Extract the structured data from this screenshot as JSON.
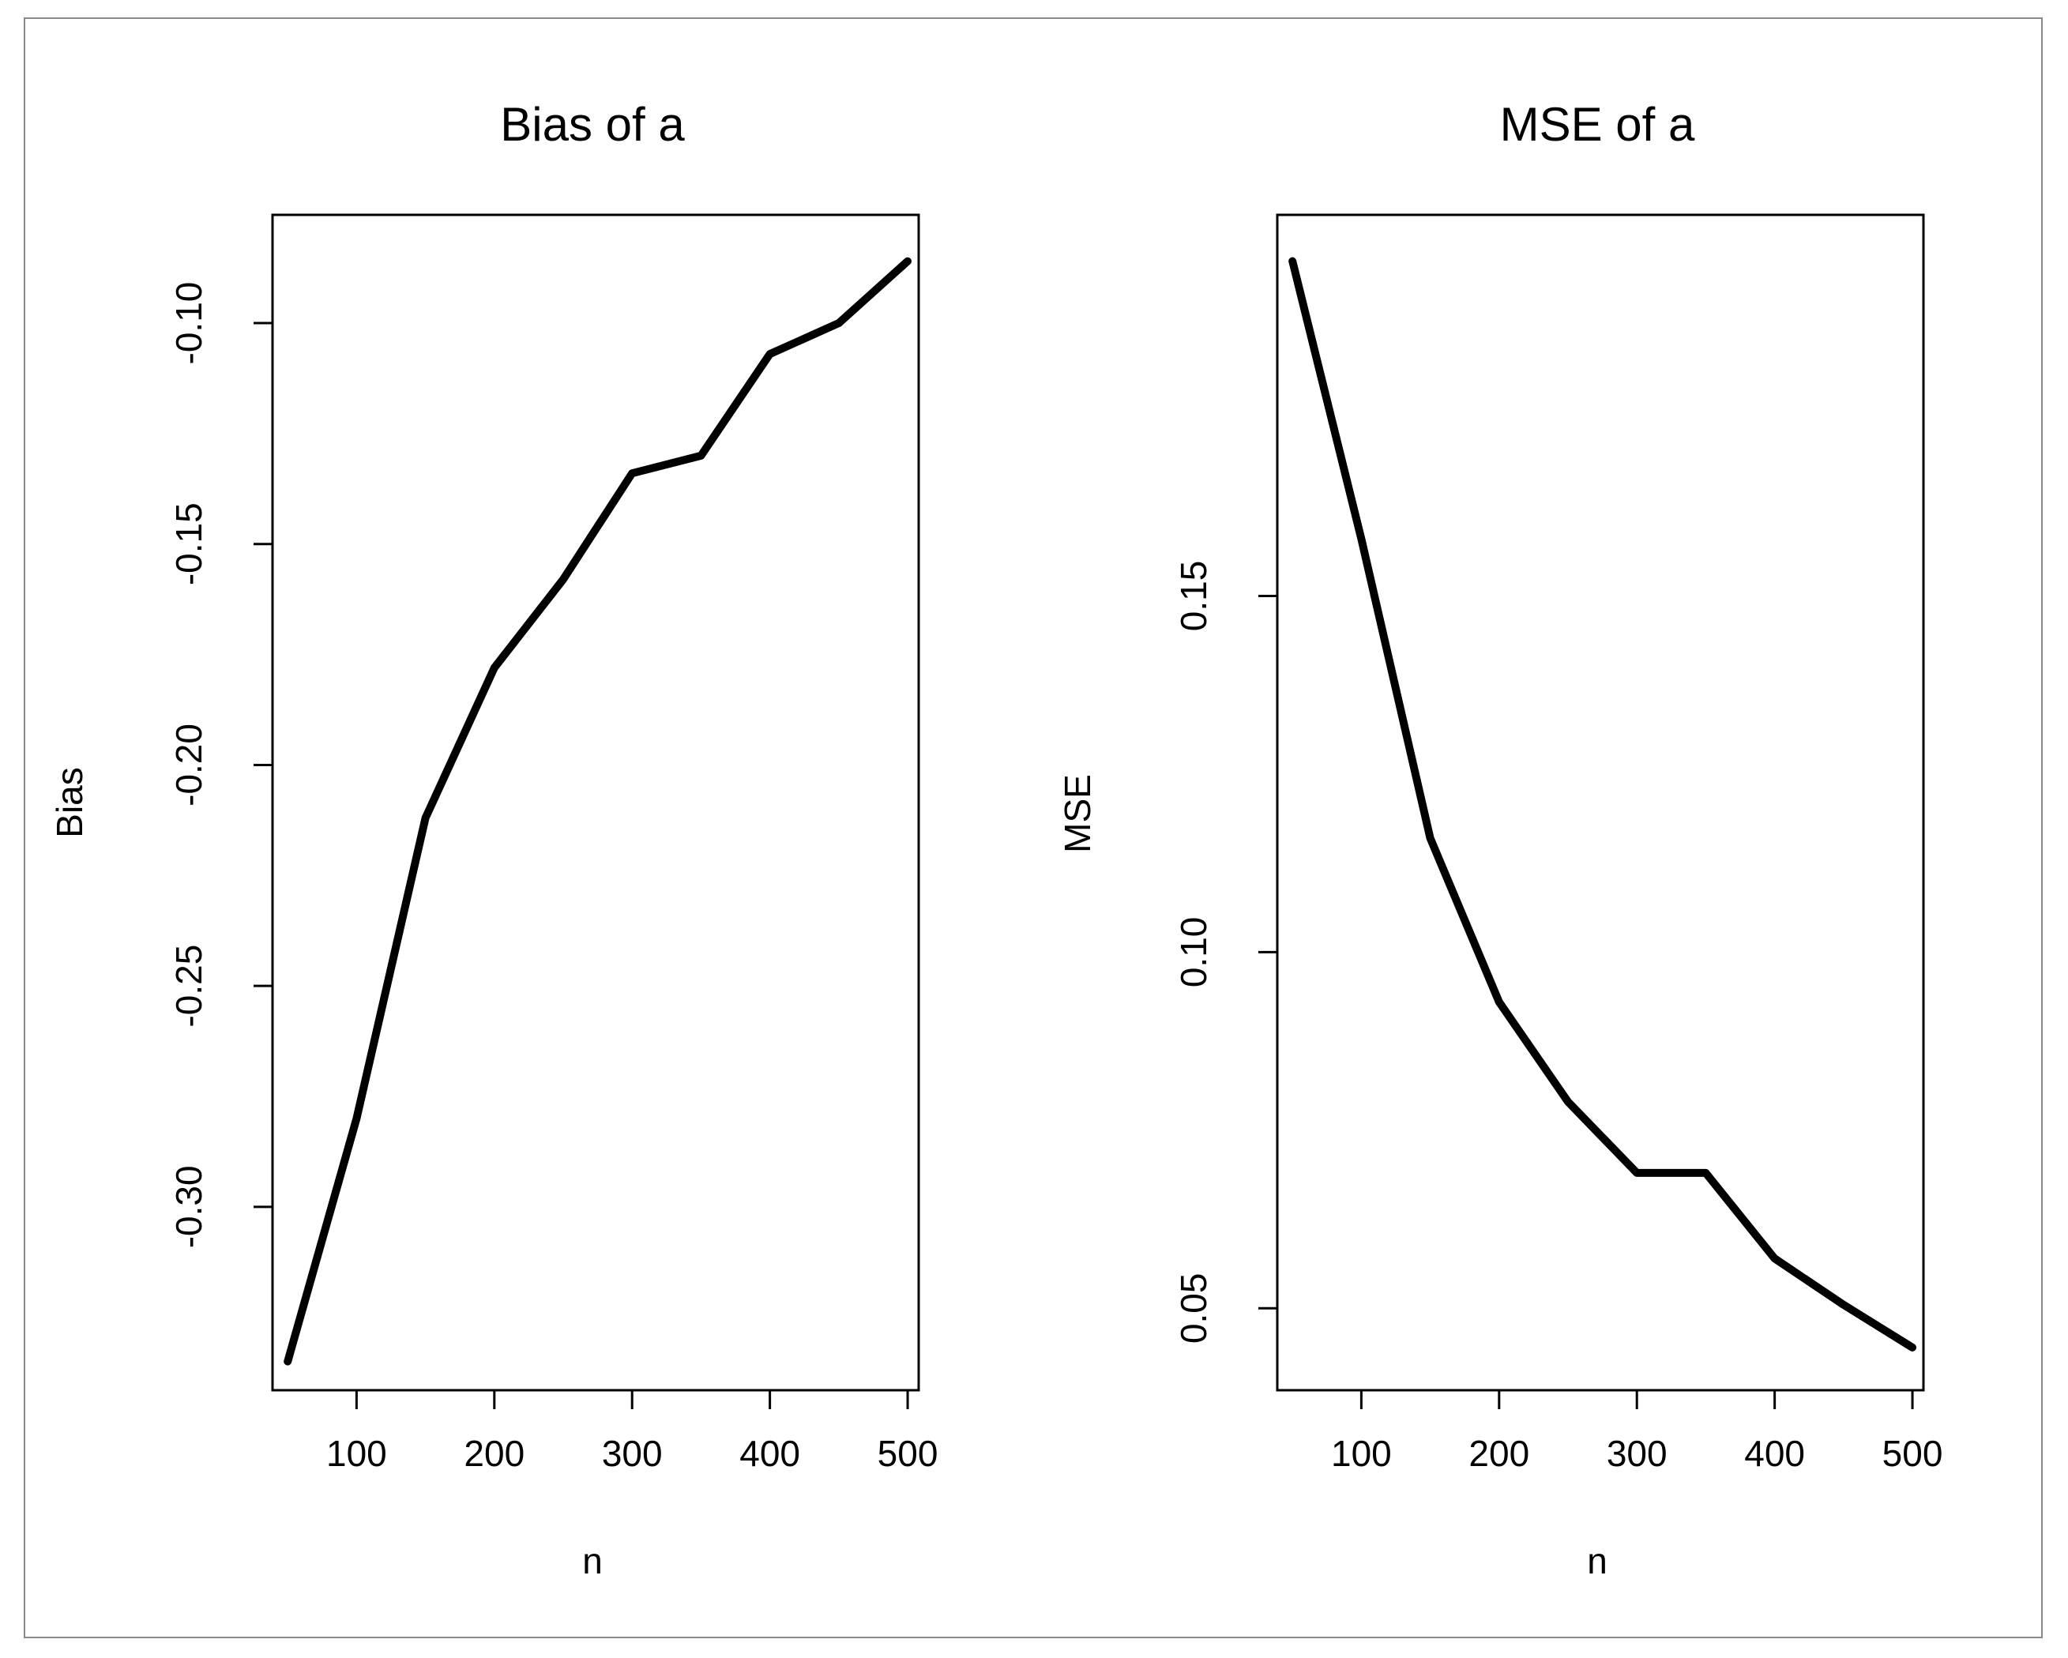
{
  "colors": {
    "line": "#000000",
    "frame": "#8a8a8a",
    "background": "#ffffff"
  },
  "chart_data": [
    {
      "type": "line",
      "title": "Bias of  a",
      "xlabel": "n",
      "ylabel": "Bias",
      "x": [
        50,
        100,
        150,
        200,
        250,
        300,
        350,
        400,
        450,
        500
      ],
      "series": [
        {
          "name": "Bias",
          "values": [
            -0.335,
            -0.28,
            -0.212,
            -0.178,
            -0.158,
            -0.134,
            -0.13,
            -0.107,
            -0.1,
            -0.086
          ]
        }
      ],
      "xlim": [
        39,
        508
      ],
      "ylim": [
        -0.3415,
        -0.0755
      ],
      "xticks": [
        100,
        200,
        300,
        400,
        500
      ],
      "xtick_labels": [
        "100",
        "200",
        "300",
        "400",
        "500"
      ],
      "yticks": [
        -0.3,
        -0.25,
        -0.2,
        -0.15,
        -0.1
      ],
      "ytick_labels": [
        "-0.30",
        "-0.25",
        "-0.20",
        "-0.15",
        "-0.10"
      ],
      "grid": false,
      "legend": "none"
    },
    {
      "type": "line",
      "title": "MSE of  a",
      "xlabel": "n",
      "ylabel": "MSE",
      "x": [
        50,
        100,
        150,
        200,
        250,
        300,
        350,
        400,
        450,
        500
      ],
      "series": [
        {
          "name": "MSE",
          "values": [
            0.197,
            0.158,
            0.116,
            0.093,
            0.079,
            0.069,
            0.069,
            0.057,
            0.0505,
            0.0445
          ]
        }
      ],
      "xlim": [
        39,
        508
      ],
      "ylim": [
        0.0385,
        0.2035
      ],
      "xticks": [
        100,
        200,
        300,
        400,
        500
      ],
      "xtick_labels": [
        "100",
        "200",
        "300",
        "400",
        "500"
      ],
      "yticks": [
        0.05,
        0.1,
        0.15
      ],
      "ytick_labels": [
        "0.05",
        "0.10",
        "0.15"
      ],
      "grid": false,
      "legend": "none"
    }
  ]
}
